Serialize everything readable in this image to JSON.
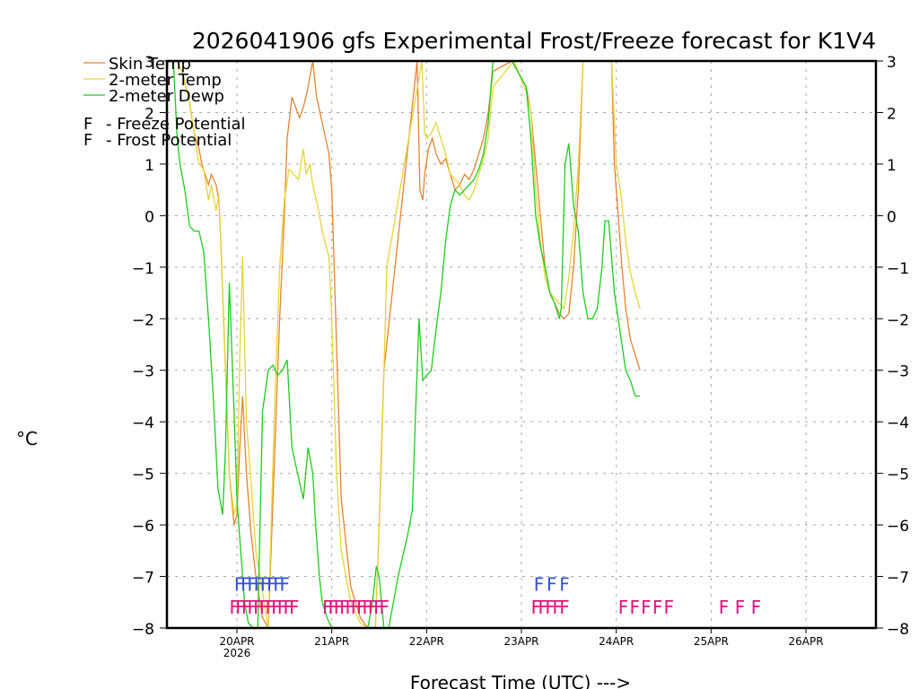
{
  "chart_data": {
    "type": "line",
    "title": "2026041906 gfs Experimental Frost/Freeze forecast for K1V4",
    "xlabel": "Forecast Time (UTC) --->",
    "ylabel": "°C",
    "ylim": [
      -8,
      3
    ],
    "xlim_days_from_20APR00Z": [
      -0.75,
      6.75
    ],
    "yticks": [
      3,
      2,
      1,
      0,
      -1,
      -2,
      -3,
      -4,
      -5,
      -6,
      -7,
      -8
    ],
    "ytick_labels": [
      "3",
      "2",
      "1",
      "0",
      "−1",
      "−2",
      "−3",
      "−4",
      "−5",
      "−6",
      "−7",
      "−8"
    ],
    "xticks": [
      {
        "day": 0,
        "label": "20APR",
        "sublabel": "2026"
      },
      {
        "day": 1,
        "label": "21APR",
        "sublabel": ""
      },
      {
        "day": 2,
        "label": "22APR",
        "sublabel": ""
      },
      {
        "day": 3,
        "label": "23APR",
        "sublabel": ""
      },
      {
        "day": 4,
        "label": "24APR",
        "sublabel": ""
      },
      {
        "day": 5,
        "label": "25APR",
        "sublabel": ""
      },
      {
        "day": 6,
        "label": "26APR",
        "sublabel": ""
      }
    ],
    "grid": true,
    "legend": [
      {
        "name": "Skin Temp",
        "color": "#e8822e"
      },
      {
        "name": "2-meter Temp",
        "color": "#e6d534"
      },
      {
        "name": "2-meter Dewp",
        "color": "#1ccd1c"
      }
    ],
    "marker_legend": [
      {
        "symbol": "F",
        "text": "- Freeze Potential",
        "color": "#e0127f"
      },
      {
        "symbol": "F",
        "text": "- Frost Potential",
        "color": "#2f4fe0"
      }
    ],
    "series": [
      {
        "name": "Skin Temp",
        "color": "#e8822e",
        "x": [
          -0.63,
          -0.58,
          -0.5,
          -0.45,
          -0.4,
          -0.37,
          -0.3,
          -0.27,
          -0.22,
          -0.19,
          -0.17,
          -0.12,
          -0.08,
          -0.03,
          0.0,
          0.03,
          0.06,
          0.1,
          0.15,
          0.2,
          0.27,
          0.33,
          0.4,
          0.45,
          0.5,
          0.53,
          0.58,
          0.62,
          0.66,
          0.7,
          0.74,
          0.8,
          0.84,
          0.9,
          0.97,
          1.0,
          1.05,
          1.1,
          1.2,
          1.3,
          1.38,
          1.42,
          1.46,
          1.5,
          1.55,
          1.9,
          1.93,
          1.96,
          1.98,
          2.02,
          2.06,
          2.1,
          2.15,
          2.2,
          2.25,
          2.3,
          2.35,
          2.4,
          2.45,
          2.5,
          2.55,
          2.6,
          2.65,
          2.7,
          2.9,
          3.05,
          3.1,
          3.15,
          3.2,
          3.25,
          3.3,
          3.35,
          3.4,
          3.45,
          3.5,
          3.55,
          3.6,
          3.65,
          3.7,
          3.75,
          3.8,
          3.85,
          3.9,
          3.95,
          3.98,
          4.02,
          4.06,
          4.1,
          4.15,
          4.2,
          4.25
        ],
        "y": [
          3.0,
          2.8,
          2.2,
          1.6,
          1.3,
          1.0,
          0.6,
          0.8,
          0.6,
          0.3,
          -0.5,
          -3.0,
          -5.0,
          -6.0,
          -5.8,
          -4.5,
          -3.5,
          -5.0,
          -6.2,
          -7.0,
          -7.8,
          -8.0,
          -4.5,
          -2.0,
          0.0,
          1.5,
          2.3,
          2.1,
          1.9,
          2.1,
          2.4,
          3.0,
          2.3,
          1.8,
          1.2,
          0.5,
          -2.5,
          -5.5,
          -7.2,
          -7.8,
          -8.0,
          -8.0,
          -8.0,
          -6.0,
          -3.0,
          3.0,
          0.5,
          0.3,
          0.8,
          1.3,
          1.5,
          1.2,
          1.0,
          1.1,
          0.8,
          0.5,
          0.6,
          0.8,
          0.7,
          0.9,
          1.2,
          1.5,
          2.0,
          2.8,
          3.0,
          2.5,
          2.0,
          1.0,
          0.0,
          -1.0,
          -1.5,
          -1.7,
          -1.9,
          -2.0,
          -1.9,
          -1.0,
          0.5,
          3.0,
          3.0,
          3.0,
          3.0,
          3.0,
          3.0,
          3.0,
          1.0,
          0.0,
          -1.0,
          -1.8,
          -2.4,
          -2.7,
          -3.0
        ]
      },
      {
        "name": "2-meter Temp",
        "color": "#e6d534",
        "x": [
          -0.63,
          -0.58,
          -0.5,
          -0.45,
          -0.4,
          -0.35,
          -0.3,
          -0.27,
          -0.22,
          -0.19,
          -0.17,
          -0.12,
          -0.08,
          -0.03,
          0.0,
          0.03,
          0.06,
          0.1,
          0.15,
          0.2,
          0.27,
          0.33,
          0.4,
          0.45,
          0.5,
          0.55,
          0.6,
          0.65,
          0.7,
          0.73,
          0.77,
          0.8,
          0.85,
          0.9,
          0.97,
          1.0,
          1.05,
          1.1,
          1.2,
          1.3,
          1.38,
          1.42,
          1.46,
          1.52,
          1.58,
          1.95,
          1.98,
          2.0,
          2.05,
          2.1,
          2.15,
          2.2,
          2.25,
          2.3,
          2.35,
          2.4,
          2.45,
          2.5,
          2.55,
          2.6,
          2.65,
          2.7,
          2.92,
          3.05,
          3.1,
          3.15,
          3.2,
          3.25,
          3.3,
          3.35,
          3.4,
          3.45,
          3.5,
          3.55,
          3.6,
          3.65,
          3.7,
          3.75,
          3.8,
          3.85,
          3.9,
          3.95,
          4.0,
          4.05,
          4.1,
          4.15,
          4.2,
          4.25
        ],
        "y": [
          3.0,
          2.8,
          2.2,
          1.6,
          1.0,
          0.9,
          0.3,
          0.6,
          0.1,
          0.4,
          -0.5,
          -3.0,
          -5.0,
          -5.8,
          -5.6,
          -2.7,
          -0.8,
          -4.0,
          -5.2,
          -6.5,
          -7.3,
          -8.0,
          -3.5,
          -1.0,
          0.3,
          0.9,
          0.8,
          0.7,
          1.3,
          0.8,
          1.0,
          0.6,
          0.2,
          -0.3,
          -0.8,
          -2.0,
          -5.0,
          -6.5,
          -7.5,
          -7.9,
          -8.0,
          -8.0,
          -8.0,
          -5.0,
          -1.0,
          3.0,
          1.6,
          1.5,
          1.6,
          1.8,
          1.5,
          1.2,
          0.8,
          0.7,
          0.6,
          0.4,
          0.3,
          0.5,
          0.8,
          1.1,
          1.5,
          2.5,
          3.0,
          2.4,
          2.0,
          0.5,
          -0.5,
          -1.2,
          -1.5,
          -1.6,
          -1.7,
          -1.8,
          -1.2,
          -0.3,
          1.0,
          3.0,
          3.0,
          3.0,
          3.0,
          3.0,
          3.0,
          3.0,
          1.0,
          0.4,
          -0.5,
          -1.1,
          -1.5,
          -1.8
        ]
      },
      {
        "name": "2-meter Dewp",
        "color": "#1ccd1c",
        "x": [
          -0.67,
          -0.63,
          -0.6,
          -0.55,
          -0.5,
          -0.45,
          -0.4,
          -0.35,
          -0.3,
          -0.25,
          -0.2,
          -0.15,
          -0.12,
          -0.08,
          -0.03,
          0.0,
          0.04,
          0.08,
          0.12,
          0.17,
          0.22,
          0.27,
          0.33,
          0.38,
          0.43,
          0.48,
          0.53,
          0.58,
          0.64,
          0.7,
          0.75,
          0.8,
          0.83,
          0.87,
          0.9,
          0.95,
          1.0,
          1.05,
          1.1,
          1.2,
          1.3,
          1.38,
          1.43,
          1.47,
          1.5,
          1.55,
          1.6,
          1.7,
          1.8,
          1.85,
          1.88,
          1.92,
          1.96,
          2.0,
          2.05,
          2.1,
          2.15,
          2.2,
          2.25,
          2.3,
          2.35,
          2.4,
          2.45,
          2.5,
          2.55,
          2.6,
          2.65,
          2.7,
          2.9,
          3.05,
          3.1,
          3.15,
          3.2,
          3.25,
          3.3,
          3.35,
          3.4,
          3.42,
          3.46,
          3.5,
          3.55,
          3.6,
          3.65,
          3.7,
          3.75,
          3.8,
          3.85,
          3.88,
          3.92,
          3.95,
          3.98,
          4.02,
          4.06,
          4.1,
          4.15,
          4.2,
          4.25
        ],
        "y": [
          3.0,
          1.5,
          1.0,
          0.5,
          -0.2,
          -0.3,
          -0.3,
          -0.7,
          -2.0,
          -3.5,
          -5.3,
          -5.8,
          -4.5,
          -1.3,
          -3.8,
          -5.5,
          -6.5,
          -7.5,
          -7.9,
          -8.0,
          -8.0,
          -3.8,
          -3.0,
          -2.9,
          -3.1,
          -3.0,
          -2.8,
          -4.5,
          -5.0,
          -5.5,
          -4.5,
          -5.0,
          -6.0,
          -7.0,
          -7.5,
          -7.8,
          -8.0,
          -8.0,
          -8.0,
          -8.0,
          -8.0,
          -8.0,
          -7.5,
          -6.8,
          -7.0,
          -8.0,
          -8.0,
          -7.0,
          -6.2,
          -5.7,
          -4.0,
          -2.0,
          -3.2,
          -3.1,
          -3.0,
          -2.2,
          -1.5,
          -0.5,
          0.2,
          0.5,
          0.4,
          0.5,
          0.6,
          0.7,
          0.9,
          1.2,
          1.8,
          3.0,
          3.0,
          2.5,
          1.5,
          0.0,
          -0.6,
          -1.0,
          -1.5,
          -1.7,
          -2.0,
          -1.8,
          1.0,
          1.4,
          0.2,
          -0.3,
          -1.5,
          -2.0,
          -2.0,
          -1.8,
          -1.0,
          -0.1,
          -0.1,
          -0.8,
          -1.5,
          -2.0,
          -2.5,
          -3.0,
          -3.2,
          -3.5,
          -3.5
        ]
      }
    ],
    "frost_markers": {
      "color": "#2f4fe0",
      "symbol": "F",
      "level": -7.1,
      "groups": [
        {
          "start": -0.03,
          "end": 0.45,
          "count": 8
        },
        {
          "start": 3.13,
          "end": 3.4,
          "count": 3
        }
      ]
    },
    "freeze_markers": {
      "color": "#e0127f",
      "symbol": "F",
      "level": -7.55,
      "groups": [
        {
          "start": -0.08,
          "end": 0.55,
          "count": 11
        },
        {
          "start": 0.9,
          "end": 1.5,
          "count": 11
        },
        {
          "start": 3.1,
          "end": 3.4,
          "count": 5
        },
        {
          "start": 4.02,
          "end": 4.5,
          "count": 5
        },
        {
          "start": 5.08,
          "end": 5.42,
          "count": 3
        }
      ]
    }
  }
}
